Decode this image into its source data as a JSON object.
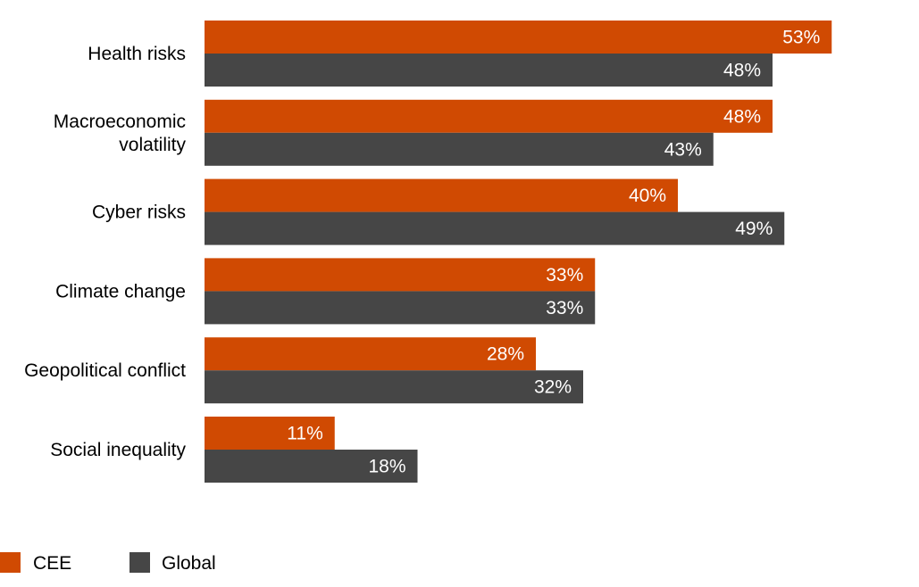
{
  "chart_data": {
    "type": "bar",
    "orientation": "horizontal",
    "categories": [
      [
        "Health risks"
      ],
      [
        "Macroeconomic",
        "volatility"
      ],
      [
        "Cyber risks"
      ],
      [
        "Climate change"
      ],
      [
        "Geopolitical conflict"
      ],
      [
        "Social inequality"
      ]
    ],
    "series": [
      {
        "name": "CEE",
        "color": "#d04a02",
        "values": [
          53,
          48,
          40,
          33,
          28,
          11
        ],
        "labels": [
          "53%",
          "48%",
          "40%",
          "33%",
          "28%",
          "11%"
        ]
      },
      {
        "name": "Global",
        "color": "#464646",
        "values": [
          48,
          43,
          49,
          33,
          32,
          18
        ],
        "labels": [
          "48%",
          "43%",
          "49%",
          "33%",
          "32%",
          "18%"
        ]
      }
    ],
    "unit": "%",
    "xlim": [
      0,
      53
    ],
    "grid": false,
    "legend_position": "bottom-left"
  }
}
